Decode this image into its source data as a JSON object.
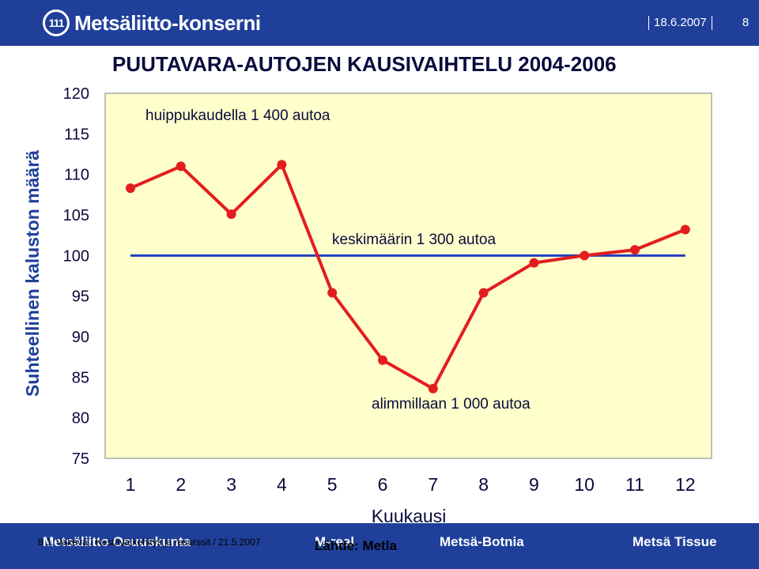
{
  "header": {
    "logo_mark": "111",
    "logo_text": "Metsäliitto-konserni",
    "date": "18.6.2007",
    "page_number": "8"
  },
  "colors": {
    "header_bg": "#1f3f9a",
    "plot_bg": "#ffffcc",
    "series_line": "#e31d1d",
    "average_line": "#1f3fbf"
  },
  "footer": {
    "brands": [
      "Metsäliitto Osuuskunta",
      "M-real",
      "Metsä-Botnia",
      "Metsä Tissue"
    ],
    "footnote": "8     J. Väkevä / Kestävä kehitys ja resurssit /  21.5.2007",
    "source": "Lähde: Metla"
  },
  "chart_data": {
    "type": "line",
    "title": "PUUTAVARA-AUTOJEN KAUSIVAIHTELU 2004-2006",
    "xlabel": "Kuukausi",
    "ylabel": "Suhteellinen kaluston määrä",
    "categories": [
      "1",
      "2",
      "3",
      "4",
      "5",
      "6",
      "7",
      "8",
      "9",
      "10",
      "11",
      "12"
    ],
    "yticks": [
      "120",
      "115",
      "110",
      "105",
      "100",
      "95",
      "90",
      "85",
      "80",
      "75"
    ],
    "ylim": [
      75,
      120
    ],
    "grid": false,
    "series": [
      {
        "values": [
          108.3,
          111.0,
          105.1,
          111.2,
          95.4,
          87.1,
          83.6,
          95.4,
          99.1,
          100.0,
          100.7,
          103.2
        ]
      }
    ],
    "average_line": 100,
    "annotations": [
      "huippukaudella 1 400 autoa",
      "keskimäärin 1 300 autoa",
      "alimmillaan 1 000 autoa"
    ]
  }
}
